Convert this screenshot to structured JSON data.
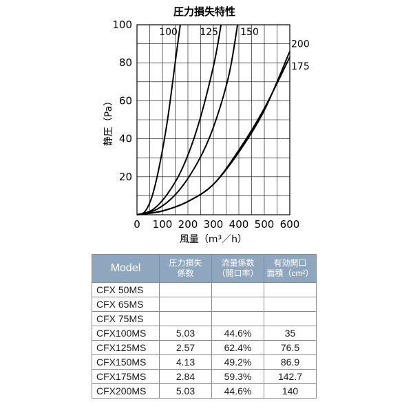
{
  "chart_data": {
    "type": "line",
    "title": "圧力損失特性",
    "xlabel": "風量（m³／h）",
    "ylabel": "静圧（Pa）",
    "xlim": [
      0,
      600
    ],
    "ylim": [
      0,
      100
    ],
    "x_ticks": [
      "0",
      "100",
      "200",
      "300",
      "400",
      "500",
      "600"
    ],
    "y_ticks": [
      "20",
      "40",
      "60",
      "80",
      "100"
    ],
    "grid": true,
    "series": [
      {
        "name": "100",
        "x": [
          0,
          30,
          60,
          90,
          120,
          150,
          170
        ],
        "y": [
          0,
          1.5,
          10,
          27,
          50,
          80,
          100
        ]
      },
      {
        "name": "125",
        "x": [
          0,
          60,
          120,
          180,
          240,
          300,
          330
        ],
        "y": [
          0,
          2.5,
          11,
          25,
          47,
          78,
          100
        ]
      },
      {
        "name": "150",
        "x": [
          0,
          80,
          160,
          240,
          300,
          360,
          395
        ],
        "y": [
          0,
          3,
          12,
          28,
          46,
          73,
          100
        ]
      },
      {
        "name": "175",
        "x": [
          0,
          100,
          200,
          300,
          400,
          500,
          600
        ],
        "y": [
          0,
          2,
          7,
          16,
          34,
          56,
          83
        ]
      },
      {
        "name": "200",
        "x": [
          0,
          100,
          200,
          300,
          400,
          500,
          600
        ],
        "y": [
          0,
          2,
          7,
          16,
          33,
          55,
          86
        ]
      }
    ]
  },
  "table": {
    "headers": {
      "model": "Model",
      "loss_coef": [
        "圧力損失",
        "係数"
      ],
      "flow_coef": [
        "流量係数",
        "（開口率）"
      ],
      "open_area": [
        "有効開口",
        "面積（cm²）"
      ]
    },
    "rows": [
      {
        "model": "CFX  50MS",
        "loss": "",
        "flow": "",
        "area": ""
      },
      {
        "model": "CFX  65MS",
        "loss": "",
        "flow": "",
        "area": ""
      },
      {
        "model": "CFX  75MS",
        "loss": "",
        "flow": "",
        "area": ""
      },
      {
        "model": "CFX100MS",
        "loss": "5.03",
        "flow": "44.6%",
        "area": "35"
      },
      {
        "model": "CFX125MS",
        "loss": "2.57",
        "flow": "62.4%",
        "area": "76.5"
      },
      {
        "model": "CFX150MS",
        "loss": "4.13",
        "flow": "49.2%",
        "area": "86.9"
      },
      {
        "model": "CFX175MS",
        "loss": "2.84",
        "flow": "59.3%",
        "area": "142.7"
      },
      {
        "model": "CFX200MS",
        "loss": "5.03",
        "flow": "44.6%",
        "area": "140"
      }
    ]
  },
  "colors": {
    "header_bg": "#8fa6bf",
    "curve": "#000000",
    "grid": "#000000"
  }
}
